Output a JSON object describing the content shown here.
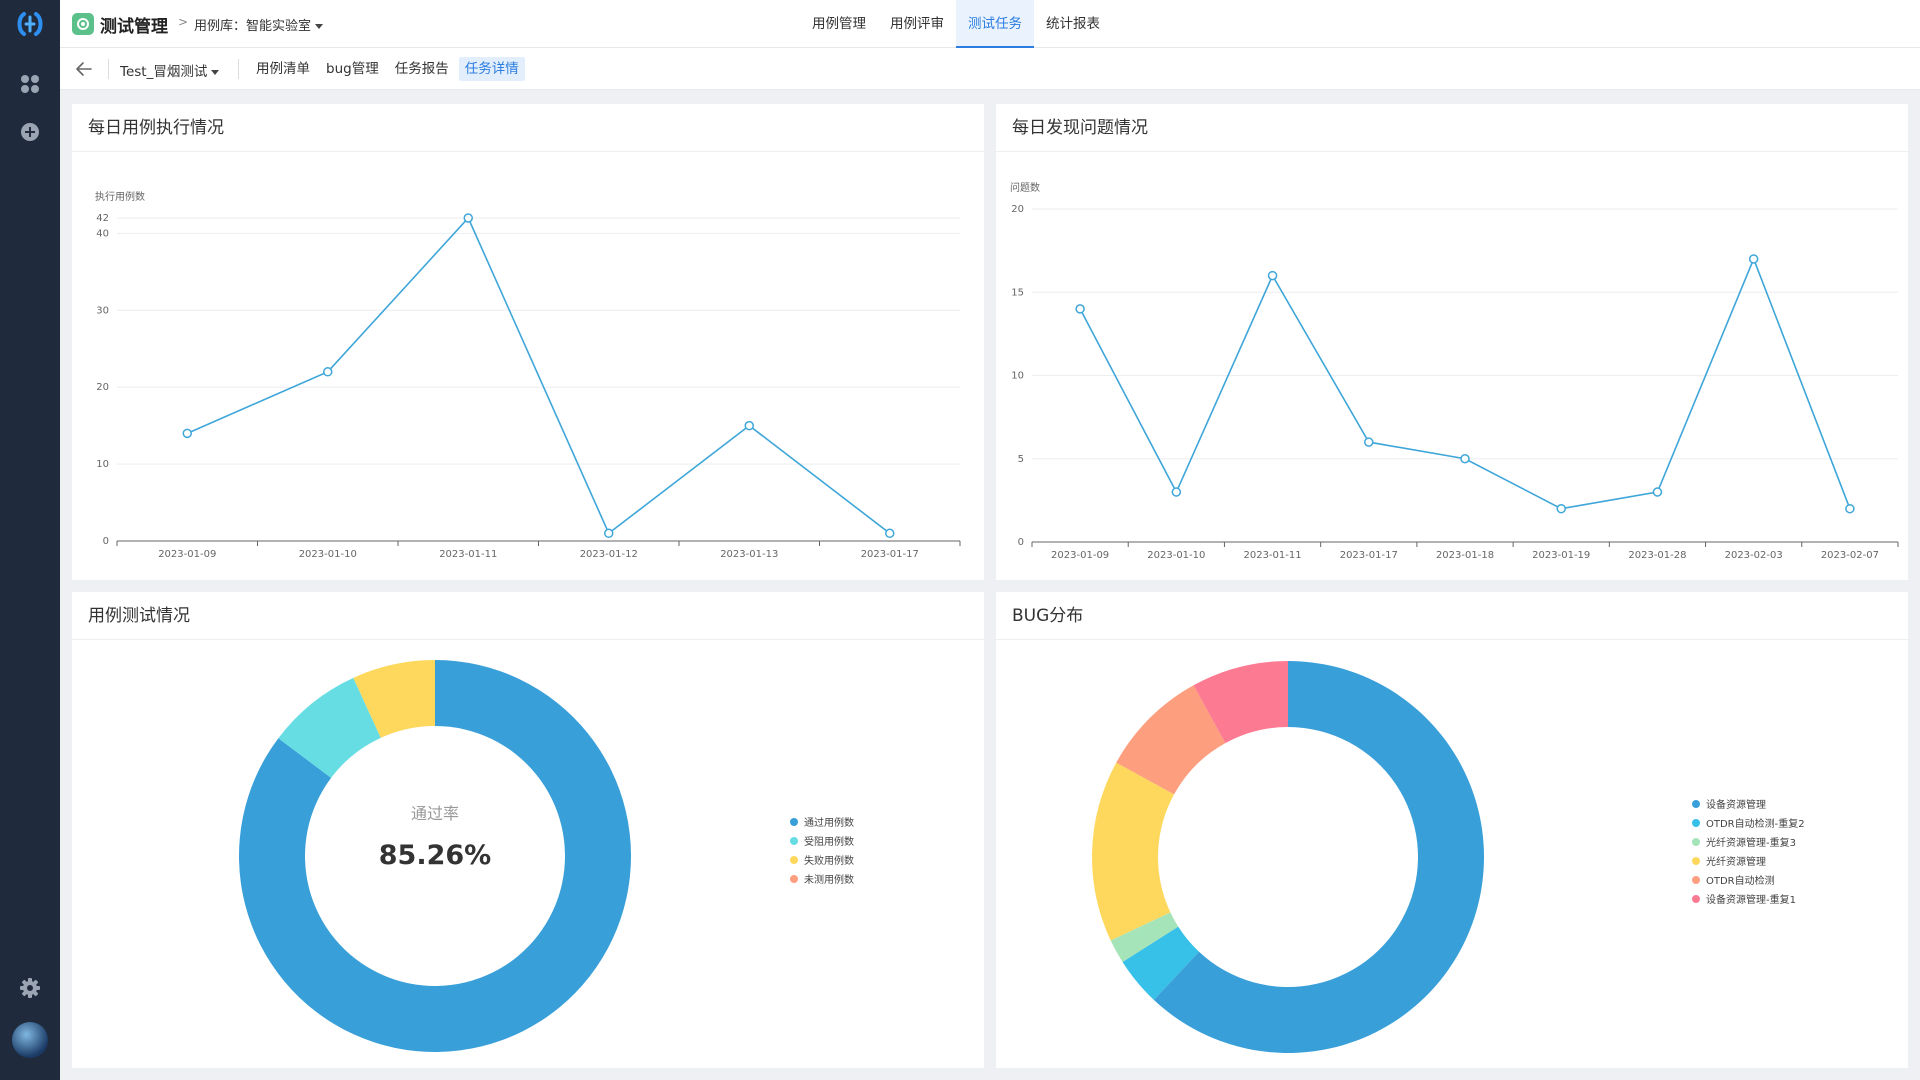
{
  "header": {
    "app_title": "测试管理",
    "breadcrumb_sep": ">",
    "lib_selector": "用例库：智能实验室",
    "tabs": [
      {
        "label": "用例管理",
        "active": false
      },
      {
        "label": "用例评审",
        "active": false
      },
      {
        "label": "测试任务",
        "active": true
      },
      {
        "label": "统计报表",
        "active": false
      }
    ]
  },
  "subheader": {
    "task_selector": "Test_冒烟测试",
    "tabs": [
      {
        "label": "用例清单",
        "active": false
      },
      {
        "label": "bug管理",
        "active": false
      },
      {
        "label": "任务报告",
        "active": false
      },
      {
        "label": "任务详情",
        "active": true
      }
    ]
  },
  "sidebar": {
    "icons": [
      "app-logo-icon",
      "apps-grid-icon",
      "add-circle-icon",
      "settings-gear-icon",
      "user-avatar"
    ]
  },
  "colors": {
    "line": "#3ea6d8",
    "blue": "#389fd9",
    "cyan": "#66dde3",
    "yellow": "#fed85d",
    "orange": "#fd9e7e",
    "pink": "#fd7a93",
    "green": "#a5e3b8",
    "sky": "#37c0e8"
  },
  "panels": {
    "daily_exec": {
      "title": "每日用例执行情况"
    },
    "daily_bugs": {
      "title": "每日发现问题情况"
    },
    "case_test": {
      "title": "用例测试情况",
      "center_label": "通过率",
      "center_value": "85.26%"
    },
    "bug_dist": {
      "title": "BUG分布"
    }
  },
  "chart_data": [
    {
      "type": "line",
      "title": "每日用例执行情况",
      "ylabel": "执行用例数",
      "categories": [
        "2023-01-09",
        "2023-01-10",
        "2023-01-11",
        "2023-01-12",
        "2023-01-13",
        "2023-01-17"
      ],
      "values": [
        14,
        22,
        42,
        1,
        15,
        1
      ],
      "yticks": [
        0,
        10,
        20,
        30,
        40,
        42
      ],
      "ylim": [
        0,
        42
      ],
      "grid": true
    },
    {
      "type": "line",
      "title": "每日发现问题情况",
      "ylabel": "问题数",
      "categories": [
        "2023-01-09",
        "2023-01-10",
        "2023-01-11",
        "2023-01-17",
        "2023-01-18",
        "2023-01-19",
        "2023-01-28",
        "2023-02-03",
        "2023-02-07"
      ],
      "values": [
        14,
        3,
        16,
        6,
        5,
        2,
        3,
        17,
        2
      ],
      "yticks": [
        0,
        5,
        10,
        15,
        20
      ],
      "ylim": [
        0,
        20
      ],
      "grid": true
    },
    {
      "type": "pie",
      "title": "用例测试情况",
      "donut": true,
      "labels": [
        "通过用例数",
        "受阻用例数",
        "失败用例数",
        "未测用例数"
      ],
      "values": [
        85.26,
        7.9,
        6.84,
        0
      ],
      "colors": [
        "#389fd9",
        "#66dde3",
        "#fed85d",
        "#fd9e7e"
      ],
      "legend": "right"
    },
    {
      "type": "pie",
      "title": "BUG分布",
      "donut": true,
      "labels": [
        "设备资源管理",
        "OTDR自动检测-重复2",
        "光纤资源管理-重复3",
        "光纤资源管理",
        "OTDR自动检测",
        "设备资源管理-重复1"
      ],
      "values": [
        62,
        4,
        2,
        15,
        9,
        8
      ],
      "colors": [
        "#389fd9",
        "#37c0e8",
        "#a5e3b8",
        "#fed85d",
        "#fd9e7e",
        "#fd7a93"
      ],
      "legend": "right"
    }
  ]
}
